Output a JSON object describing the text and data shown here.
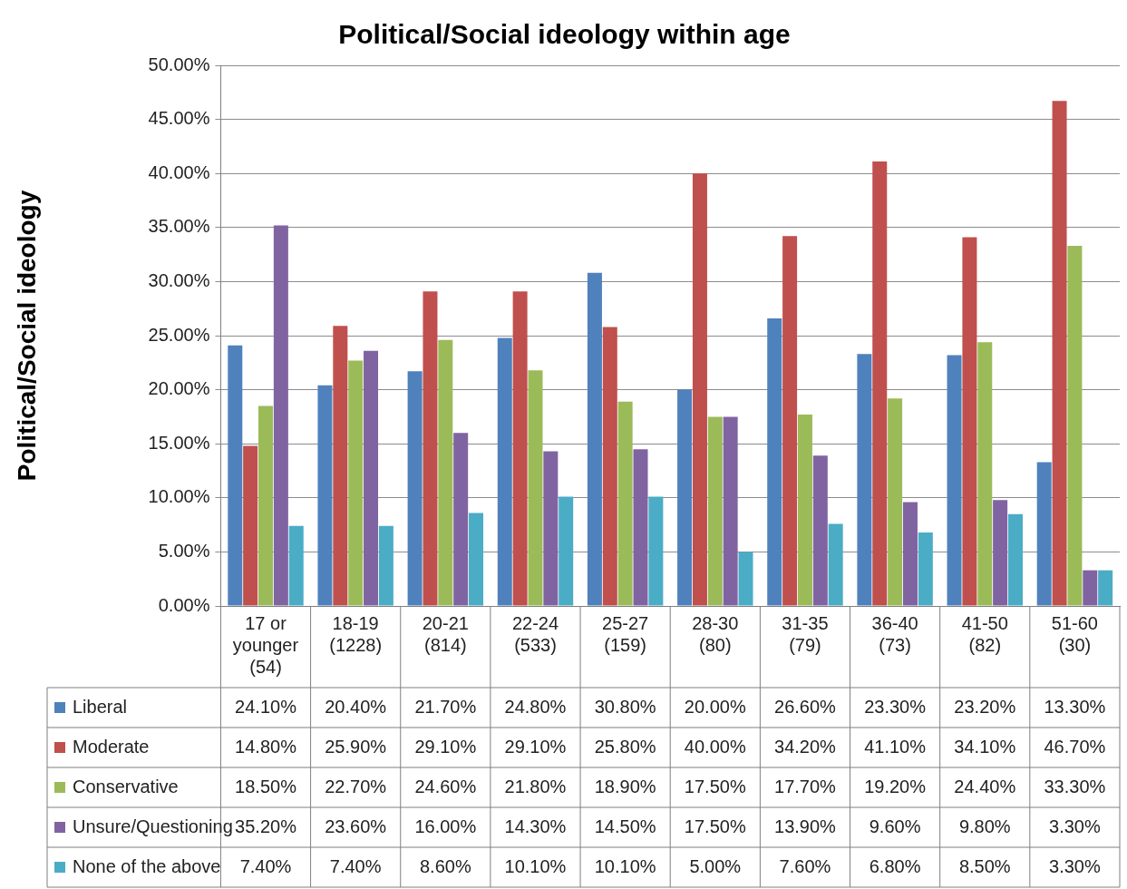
{
  "chart_data": {
    "type": "bar",
    "title": "Political/Social ideology within age",
    "ylabel": "Political/Social ideology",
    "categories": [
      "17 or younger (54)",
      "18-19 (1228)",
      "20-21 (814)",
      "22-24 (533)",
      "25-27 (159)",
      "28-30 (80)",
      "31-35 (79)",
      "36-40 (73)",
      "41-50 (82)",
      "51-60 (30)"
    ],
    "series": [
      {
        "name": "Liberal",
        "color": "#4f81bd",
        "values": [
          24.1,
          20.4,
          21.7,
          24.8,
          30.8,
          20.0,
          26.6,
          23.3,
          23.2,
          13.3
        ],
        "value_labels": [
          "24.10%",
          "20.40%",
          "21.70%",
          "24.80%",
          "30.80%",
          "20.00%",
          "26.60%",
          "23.30%",
          "23.20%",
          "13.30%"
        ]
      },
      {
        "name": "Moderate",
        "color": "#c0504d",
        "values": [
          14.8,
          25.9,
          29.1,
          29.1,
          25.8,
          40.0,
          34.2,
          41.1,
          34.1,
          46.7
        ],
        "value_labels": [
          "14.80%",
          "25.90%",
          "29.10%",
          "29.10%",
          "25.80%",
          "40.00%",
          "34.20%",
          "41.10%",
          "34.10%",
          "46.70%"
        ]
      },
      {
        "name": "Conservative",
        "color": "#9bbb59",
        "values": [
          18.5,
          22.7,
          24.6,
          21.8,
          18.9,
          17.5,
          17.7,
          19.2,
          24.4,
          33.3
        ],
        "value_labels": [
          "18.50%",
          "22.70%",
          "24.60%",
          "21.80%",
          "18.90%",
          "17.50%",
          "17.70%",
          "19.20%",
          "24.40%",
          "33.30%"
        ]
      },
      {
        "name": "Unsure/Questioning",
        "color": "#8064a2",
        "values": [
          35.2,
          23.6,
          16.0,
          14.3,
          14.5,
          17.5,
          13.9,
          9.6,
          9.8,
          3.3
        ],
        "value_labels": [
          "35.20%",
          "23.60%",
          "16.00%",
          "14.30%",
          "14.50%",
          "17.50%",
          "13.90%",
          "9.60%",
          "9.80%",
          "3.30%"
        ]
      },
      {
        "name": "None of the above",
        "color": "#4bacc6",
        "values": [
          7.4,
          7.4,
          8.6,
          10.1,
          10.1,
          5.0,
          7.6,
          6.8,
          8.5,
          3.3
        ],
        "value_labels": [
          "7.40%",
          "7.40%",
          "8.60%",
          "10.10%",
          "10.10%",
          "5.00%",
          "7.60%",
          "6.80%",
          "8.50%",
          "3.30%"
        ]
      }
    ],
    "ylim": [
      0,
      50
    ],
    "yticks": [
      {
        "value": 0,
        "label": "0.00%"
      },
      {
        "value": 5,
        "label": "5.00%"
      },
      {
        "value": 10,
        "label": "10.00%"
      },
      {
        "value": 15,
        "label": "15.00%"
      },
      {
        "value": 20,
        "label": "20.00%"
      },
      {
        "value": 25,
        "label": "25.00%"
      },
      {
        "value": 30,
        "label": "30.00%"
      },
      {
        "value": 35,
        "label": "35.00%"
      },
      {
        "value": 40,
        "label": "40.00%"
      },
      {
        "value": 45,
        "label": "45.00%"
      },
      {
        "value": 50,
        "label": "50.00%"
      }
    ],
    "grid": "y",
    "legend": "bottom left"
  }
}
